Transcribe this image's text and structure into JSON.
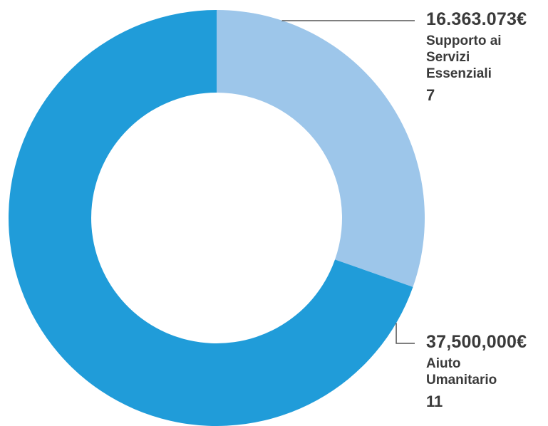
{
  "chart_data": {
    "type": "pie",
    "variant": "donut",
    "categories": [
      "Supporto ai Servizi Essenziali",
      "Aiuto Umanitario"
    ],
    "values": [
      16363073,
      37500000
    ],
    "value_labels": [
      "16.363.073€",
      "37,500,000€"
    ],
    "counts": [
      "7",
      "11"
    ],
    "colors": [
      "#9dc6ea",
      "#209cd9"
    ],
    "legend": "none"
  }
}
